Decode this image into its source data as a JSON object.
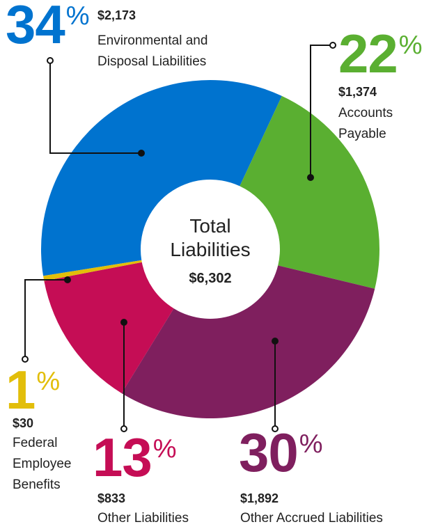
{
  "chart_data": {
    "type": "donut",
    "center_title": "Total Liabilities",
    "total": 6302,
    "total_label": "$6,302",
    "categories": [
      "Environmental and Disposal Liabilities",
      "Accounts Payable",
      "Other Accrued Liabilities",
      "Other Liabilities",
      "Federal Employee Benefits"
    ],
    "values": [
      2173,
      1374,
      1892,
      833,
      30
    ],
    "value_labels": [
      "$2,173",
      "$1,374",
      "$1,892",
      "$833",
      "$30"
    ],
    "percent": [
      34,
      22,
      30,
      13,
      1
    ],
    "percent_unit": "%",
    "colors": [
      "#0073cf",
      "#5aaf31",
      "#7f1f5e",
      "#c50d55",
      "#e2be0a"
    ]
  }
}
